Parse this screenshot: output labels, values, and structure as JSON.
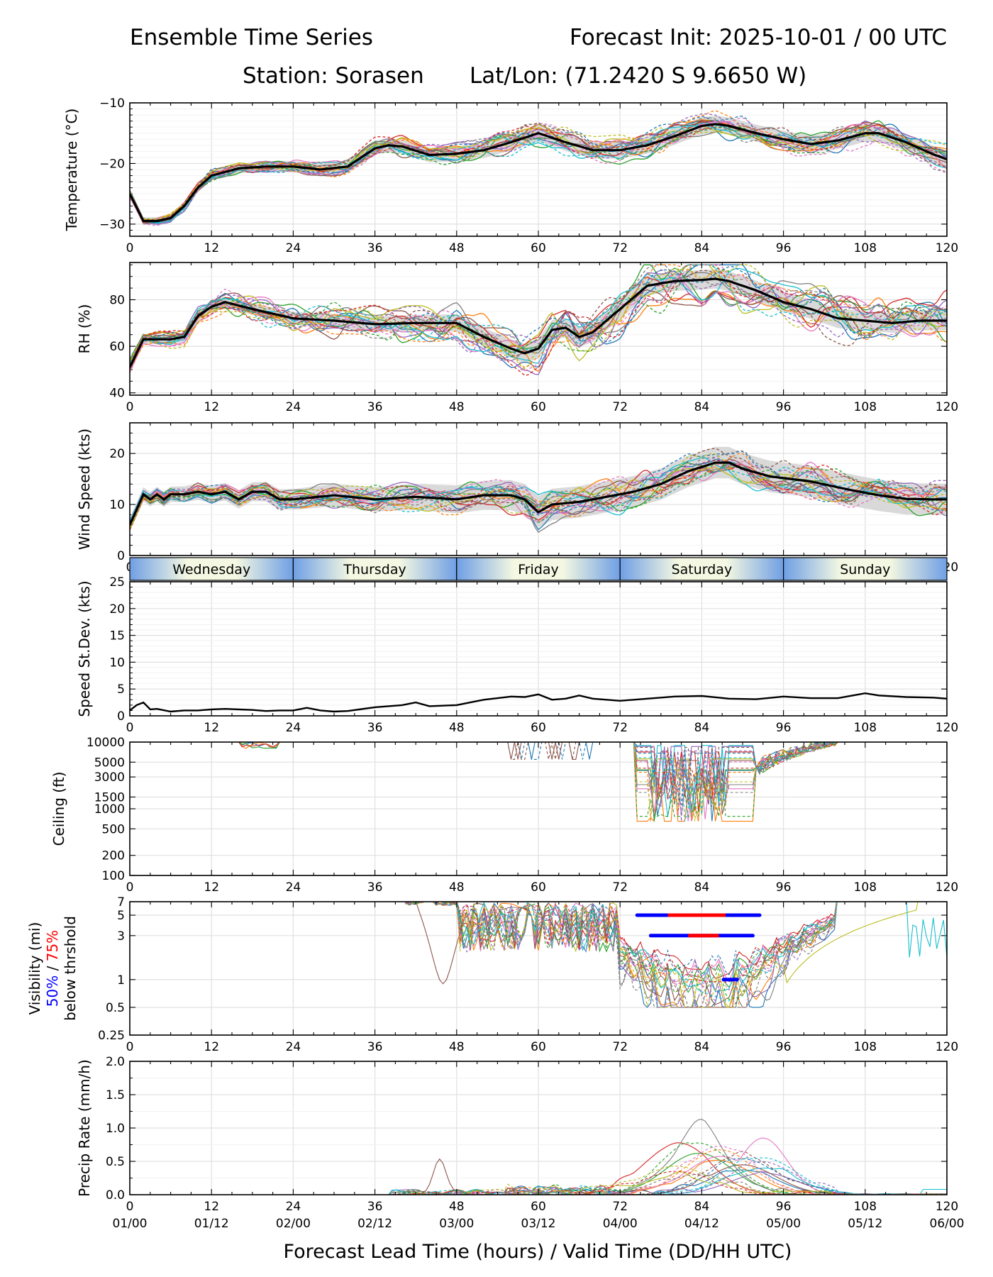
{
  "header": {
    "title_left": "Ensemble Time Series",
    "title_right": "Forecast Init: 2025-10-01 / 00 UTC",
    "station": "Station: Sorasen",
    "latlon": "Lat/Lon: (71.2420 S 9.6650 W)"
  },
  "x_axis": {
    "label": "Forecast Lead Time (hours) / Valid Time (DD/HH UTC)",
    "lead_ticks": [
      "0",
      "12",
      "24",
      "36",
      "48",
      "60",
      "72",
      "84",
      "96",
      "108",
      "120"
    ],
    "valid_ticks": [
      "01/00",
      "01/12",
      "02/00",
      "02/12",
      "03/00",
      "03/12",
      "04/00",
      "04/12",
      "05/00",
      "05/12",
      "06/00"
    ],
    "range": [
      0,
      120
    ]
  },
  "day_banner": [
    "Wednesday",
    "Thursday",
    "Friday",
    "Saturday",
    "Sunday"
  ],
  "colors": {
    "mean": "#000000",
    "spread": "#d9d9d9",
    "vis50": "#0000ff",
    "vis75": "#ff0000",
    "members": [
      "#1f77b4",
      "#ff7f0e",
      "#2ca02c",
      "#d62728",
      "#9467bd",
      "#8c564b",
      "#e377c2",
      "#7f7f7f",
      "#bcbd22",
      "#17becf"
    ]
  },
  "chart_data": [
    {
      "id": "temperature",
      "type": "line",
      "ylabel": "Temperature (°C)",
      "ylim": [
        -32,
        -10
      ],
      "yticks": [
        "-10",
        "-20",
        "-30"
      ],
      "x": [
        0,
        2,
        4,
        6,
        8,
        10,
        12,
        16,
        20,
        24,
        28,
        32,
        36,
        38,
        40,
        44,
        48,
        52,
        56,
        60,
        64,
        68,
        72,
        76,
        80,
        84,
        86,
        88,
        92,
        96,
        100,
        104,
        108,
        110,
        114,
        118,
        120
      ],
      "mean": [
        -25,
        -29.5,
        -29.5,
        -29,
        -27,
        -24,
        -22,
        -20.8,
        -20.5,
        -20.5,
        -21,
        -20.5,
        -17.5,
        -17,
        -17.2,
        -18.6,
        -18.4,
        -17.8,
        -16.5,
        -15,
        -16.5,
        -17.8,
        -17.8,
        -17,
        -15.5,
        -13.8,
        -13.5,
        -13.8,
        -15,
        -16,
        -16.8,
        -16.2,
        -15,
        -15,
        -16.5,
        -18.5,
        -19.3
      ],
      "spread": 1.0
    },
    {
      "id": "rh",
      "type": "line",
      "ylabel": "RH (%)",
      "ylim": [
        39,
        96
      ],
      "yticks": [
        "40",
        "60",
        "80"
      ],
      "x": [
        0,
        2,
        4,
        6,
        8,
        10,
        12,
        14,
        18,
        24,
        30,
        36,
        42,
        48,
        52,
        56,
        58,
        60,
        62,
        64,
        66,
        68,
        72,
        76,
        80,
        84,
        86,
        88,
        92,
        96,
        100,
        104,
        108,
        112,
        116,
        120
      ],
      "mean": [
        51,
        63,
        63,
        63,
        64,
        73,
        77,
        79,
        76,
        72,
        71,
        69.5,
        70,
        70,
        64,
        59,
        57,
        59,
        67,
        68,
        64,
        66,
        76,
        86,
        88,
        88.5,
        89,
        88,
        84,
        79,
        76,
        72,
        71,
        70,
        71,
        71
      ],
      "spread": 3.0
    },
    {
      "id": "wind_speed",
      "type": "line",
      "ylabel": "Wind Speed (kts)",
      "ylim": [
        0,
        26
      ],
      "yticks": [
        "0",
        "10",
        "20"
      ],
      "x": [
        0,
        1,
        2,
        3,
        4,
        5,
        6,
        8,
        10,
        12,
        14,
        16,
        18,
        20,
        22,
        24,
        30,
        36,
        42,
        48,
        52,
        56,
        58,
        60,
        62,
        66,
        70,
        74,
        78,
        82,
        86,
        88,
        90,
        94,
        100,
        106,
        110,
        114,
        118,
        120
      ],
      "mean": [
        6,
        9,
        12,
        11,
        12,
        11,
        12,
        12,
        12.5,
        12,
        12.5,
        11,
        12.5,
        12.5,
        11,
        11,
        11.8,
        11,
        11.5,
        11,
        11.8,
        11.8,
        11,
        8.5,
        10,
        10.5,
        11.5,
        12.5,
        14,
        16.5,
        18.2,
        18.2,
        17,
        15.5,
        14.5,
        12.8,
        11.8,
        11.1,
        11,
        11
      ],
      "spread": 2.2
    },
    {
      "id": "speed_stdev",
      "type": "line",
      "ylabel": "Speed St.Dev. (kts)",
      "ylim": [
        0,
        25
      ],
      "yticks": [
        "0",
        "5",
        "10",
        "15",
        "20",
        "25"
      ],
      "x": [
        0,
        1,
        2,
        3,
        4,
        6,
        8,
        10,
        12,
        14,
        16,
        18,
        20,
        22,
        24,
        26,
        28,
        30,
        32,
        36,
        40,
        42,
        44,
        48,
        50,
        52,
        54,
        56,
        58,
        60,
        62,
        64,
        66,
        68,
        72,
        76,
        80,
        84,
        88,
        92,
        96,
        100,
        104,
        108,
        110,
        114,
        118,
        120
      ],
      "values": [
        1,
        2,
        2.5,
        1.2,
        1.3,
        0.8,
        1,
        1,
        1.2,
        1.3,
        1.2,
        1.1,
        0.9,
        1,
        1,
        1.5,
        1,
        0.8,
        0.9,
        1.6,
        2,
        2.5,
        1.8,
        2,
        2.5,
        3,
        3.3,
        3.6,
        3.5,
        4,
        3,
        3.2,
        3.8,
        3.2,
        2.8,
        3.2,
        3.6,
        3.7,
        3.2,
        3.1,
        3.6,
        3.3,
        3.3,
        4.2,
        3.8,
        3.5,
        3.4,
        3.2
      ]
    },
    {
      "id": "ceiling",
      "type": "line",
      "scale": "log",
      "ylabel": "Ceiling (ft)",
      "ylim": [
        100,
        10000
      ],
      "yticks": [
        "10000",
        "5000",
        "3000",
        "1500",
        "1000",
        "500",
        "200",
        "100"
      ]
    },
    {
      "id": "visibility",
      "type": "line",
      "scale": "log",
      "ylabel_line1": "Visibility (mi)",
      "ylabel_50": "50%",
      "ylabel_sep": " / ",
      "ylabel_75": "75%",
      "ylabel_line3": "below thrshold",
      "ylim": [
        0.25,
        7
      ],
      "yticks": [
        "7",
        "5",
        "3",
        "1",
        "0.5",
        "0.25"
      ],
      "threshold_segments": [
        {
          "level": 5,
          "start": 74.5,
          "end": 92.5,
          "red_start": 79,
          "red_end": 87.5
        },
        {
          "level": 3,
          "start": 76.5,
          "end": 91.5,
          "red_start": 82,
          "red_end": 86.5
        },
        {
          "level": 1,
          "start": 87.2,
          "end": 89.2,
          "red_start": 0,
          "red_end": 0
        }
      ]
    },
    {
      "id": "precip",
      "type": "line",
      "ylabel": "Precip Rate (mm/h)",
      "ylim": [
        0,
        2.0
      ],
      "yticks": [
        "0.0",
        "0.5",
        "1.0",
        "1.5",
        "2.0"
      ]
    }
  ]
}
